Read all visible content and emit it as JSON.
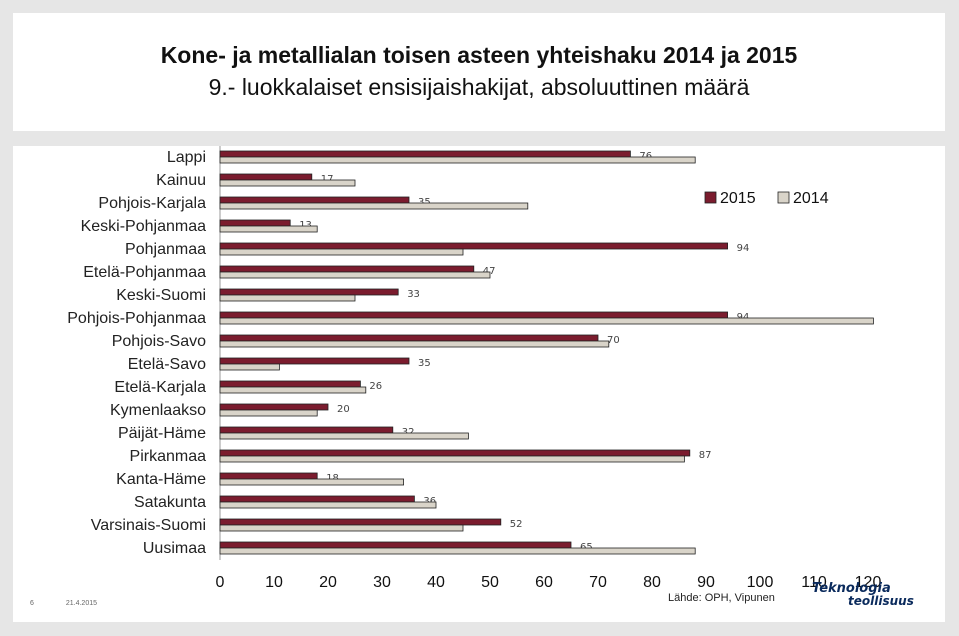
{
  "title": {
    "line1": "Kone- ja metallialan toisen asteen yhteishaku 2014 ja 2015",
    "line2": "9.- luokkalaiset ensisijaishakijat, absoluuttinen määrä"
  },
  "footer": {
    "page_number": "6",
    "date": "21.4.2015",
    "source": "Lähde: OPH, Vipunen",
    "logo_line1": "Teknologia",
    "logo_line2": "teollisuus"
  },
  "colors": {
    "series_2015": "#7b1c2e",
    "series_2014": "#d9d4c9"
  },
  "chart_data": {
    "type": "bar",
    "orientation": "horizontal",
    "categories": [
      "Lappi",
      "Kainuu",
      "Pohjois-Karjala",
      "Keski-Pohjanmaa",
      "Pohjanmaa",
      "Etelä-Pohjanmaa",
      "Keski-Suomi",
      "Pohjois-Pohjanmaa",
      "Pohjois-Savo",
      "Etelä-Savo",
      "Etelä-Karjala",
      "Kymenlaakso",
      "Päijät-Häme",
      "Pirkanmaa",
      "Kanta-Häme",
      "Satakunta",
      "Varsinais-Suomi",
      "Uusimaa"
    ],
    "series": [
      {
        "name": "2015",
        "values": [
          76,
          17,
          35,
          13,
          94,
          47,
          33,
          94,
          70,
          35,
          26,
          20,
          32,
          87,
          18,
          36,
          52,
          65
        ],
        "data_labels": true
      },
      {
        "name": "2014",
        "values": [
          88,
          25,
          57,
          18,
          45,
          50,
          25,
          121,
          72,
          11,
          27,
          18,
          46,
          86,
          34,
          40,
          45,
          88
        ],
        "data_labels": false
      }
    ],
    "xlim": [
      0,
      120
    ],
    "xticks": [
      0,
      10,
      20,
      30,
      40,
      50,
      60,
      70,
      80,
      90,
      100,
      110,
      120
    ],
    "grid": false,
    "legend": "top-right"
  }
}
